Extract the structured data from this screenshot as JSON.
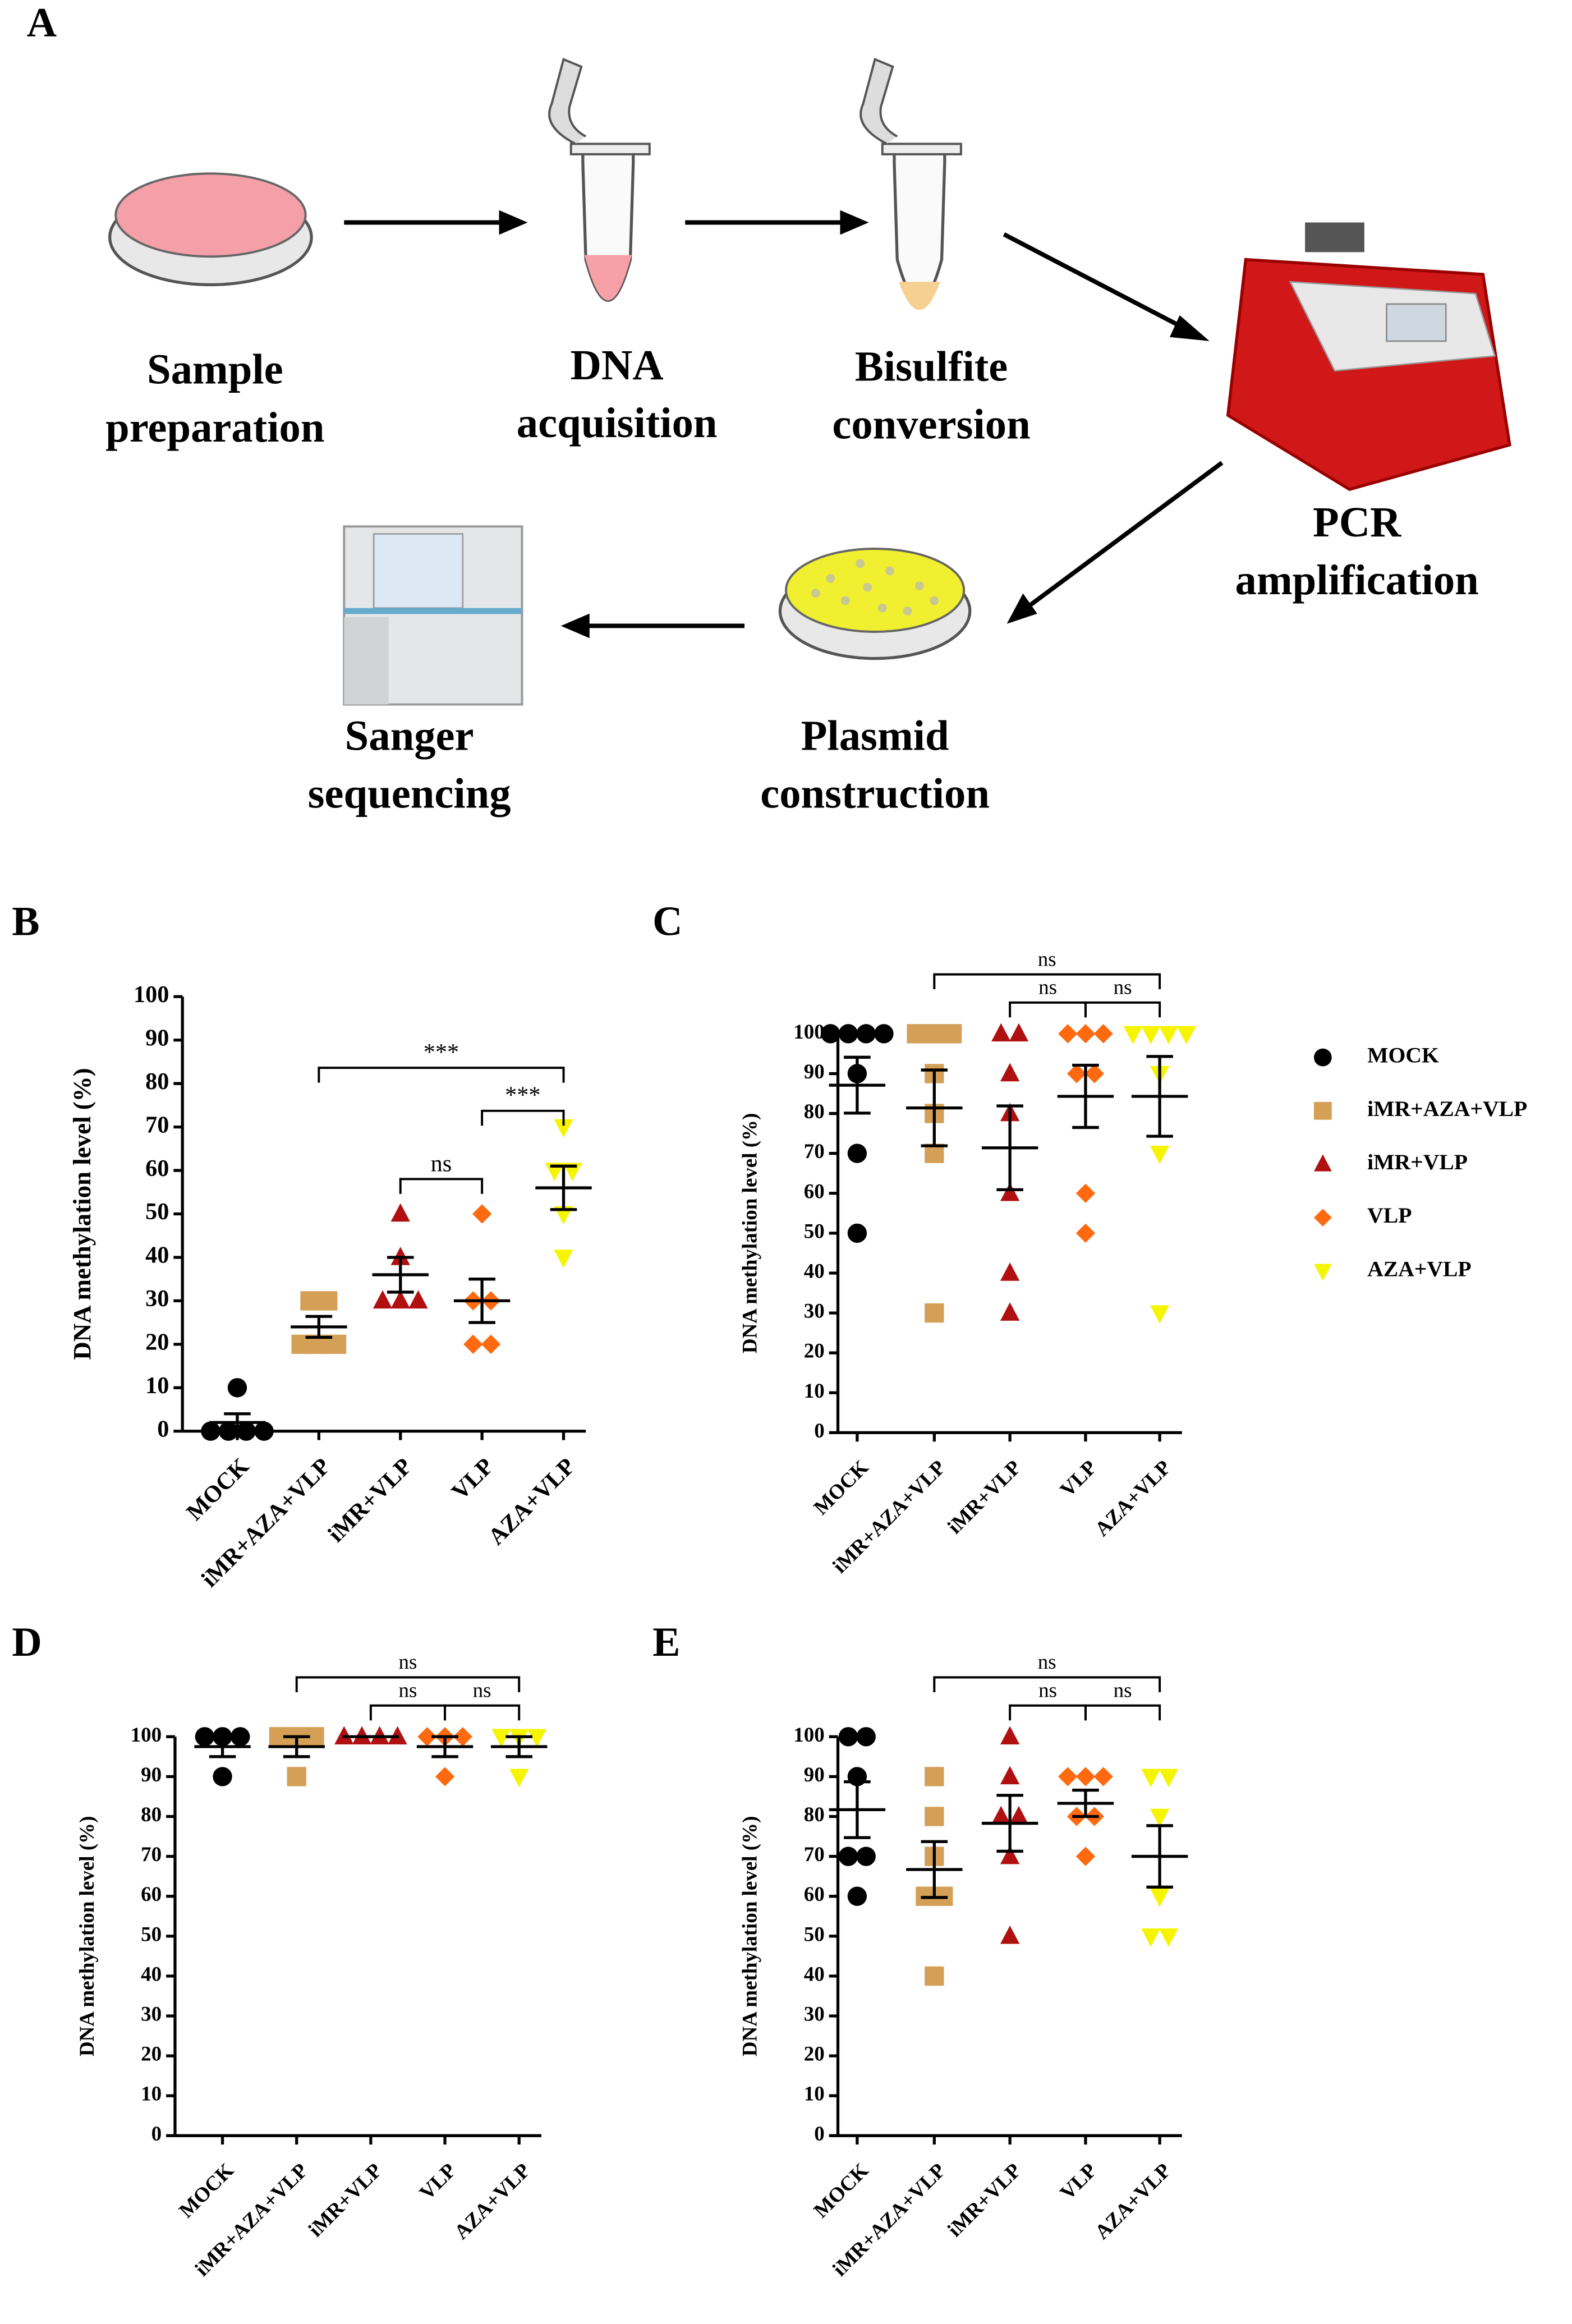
{
  "diagram": {
    "label": "A",
    "steps": [
      {
        "lines": [
          "Sample",
          "preparation"
        ]
      },
      {
        "lines": [
          "DNA",
          "acquisition"
        ]
      },
      {
        "lines": [
          "Bisulfite",
          "conversion"
        ]
      },
      {
        "lines": [
          "PCR",
          "amplification"
        ]
      },
      {
        "lines": [
          "Plasmid",
          "construction"
        ]
      },
      {
        "lines": [
          "Sanger",
          "sequencing"
        ]
      }
    ]
  },
  "chart_data": [
    {
      "type": "dot",
      "title": "B",
      "y_label": "DNA methylation level (%)",
      "categories": [
        "MOCK",
        "iMR+AZA+VLP",
        "iMR+VLP",
        "VLP",
        "AZA+VLP"
      ],
      "colors": [
        "#000000",
        "#d4a055",
        "#b01010",
        "#ff6a10",
        "#f5f500"
      ],
      "markers": [
        "circle",
        "square",
        "triangle",
        "diamond",
        "triangle-down"
      ],
      "values": [
        [
          0,
          0,
          0,
          0,
          10
        ],
        [
          30,
          30,
          20,
          20,
          20
        ],
        [
          50,
          40,
          30,
          30,
          30
        ],
        [
          50,
          30,
          30,
          20,
          20
        ],
        [
          70,
          60,
          60,
          50,
          40
        ]
      ],
      "mean": [
        2,
        24,
        36,
        30,
        56
      ],
      "sem": [
        2,
        2.4,
        4,
        5,
        5
      ],
      "brackets": [
        {
          "from": 1,
          "to": 4,
          "label": "***"
        },
        {
          "from": 3,
          "to": 4,
          "label": "***"
        },
        {
          "from": 2,
          "to": 3,
          "label": "ns"
        }
      ],
      "ylim": [
        0,
        100
      ],
      "yticks": [
        0,
        10,
        20,
        30,
        40,
        50,
        60,
        70,
        80,
        90,
        100
      ],
      "legend": false
    },
    {
      "type": "dot",
      "title": "C",
      "y_label": "DNA methylation level (%)",
      "categories": [
        "MOCK",
        "iMR+AZA+VLP",
        "iMR+VLP",
        "VLP",
        "AZA+VLP"
      ],
      "colors": [
        "#000000",
        "#d4a055",
        "#b01010",
        "#ff6a10",
        "#f5f500"
      ],
      "markers": [
        "circle",
        "square",
        "triangle",
        "diamond",
        "triangle-down"
      ],
      "values": [
        [
          100,
          100,
          100,
          100,
          90,
          70,
          50
        ],
        [
          100,
          100,
          100,
          90,
          80,
          70,
          30
        ],
        [
          100,
          100,
          90,
          80,
          60,
          40,
          30
        ],
        [
          100,
          100,
          100,
          90,
          90,
          60,
          50
        ],
        [
          100,
          100,
          100,
          100,
          90,
          70,
          30
        ]
      ],
      "mean": [
        87.1,
        81.4,
        71.4,
        84.3,
        84.3
      ],
      "sem": [
        7,
        9.5,
        10.5,
        7.8,
        10
      ],
      "brackets": [
        {
          "from": 1,
          "to": 4,
          "label": "ns"
        },
        {
          "from": 2,
          "to": 3,
          "label": "ns"
        },
        {
          "from": 3,
          "to": 4,
          "label": "ns"
        }
      ],
      "ylim": [
        0,
        100
      ],
      "yticks": [
        0,
        10,
        20,
        30,
        40,
        50,
        60,
        70,
        80,
        90,
        100
      ],
      "legend": true
    },
    {
      "type": "dot",
      "title": "D",
      "y_label": "DNA methylation level (%)",
      "categories": [
        "MOCK",
        "iMR+AZA+VLP",
        "iMR+VLP",
        "VLP",
        "AZA+VLP"
      ],
      "colors": [
        "#000000",
        "#d4a055",
        "#b01010",
        "#ff6a10",
        "#f5f500"
      ],
      "markers": [
        "circle",
        "square",
        "triangle",
        "diamond",
        "triangle-down"
      ],
      "values": [
        [
          100,
          100,
          100,
          90
        ],
        [
          100,
          100,
          100,
          90
        ],
        [
          100,
          100,
          100,
          100
        ],
        [
          100,
          100,
          100,
          90
        ],
        [
          100,
          100,
          100,
          90
        ]
      ],
      "mean": [
        97.5,
        97.5,
        100,
        97.5,
        97.5
      ],
      "sem": [
        2.5,
        2.5,
        0,
        2.5,
        2.5
      ],
      "brackets": [
        {
          "from": 1,
          "to": 4,
          "label": "ns"
        },
        {
          "from": 2,
          "to": 3,
          "label": "ns"
        },
        {
          "from": 3,
          "to": 4,
          "label": "ns"
        }
      ],
      "ylim": [
        0,
        100
      ],
      "yticks": [
        0,
        10,
        20,
        30,
        40,
        50,
        60,
        70,
        80,
        90,
        100
      ],
      "legend": false
    },
    {
      "type": "dot",
      "title": "E",
      "y_label": "DNA methylation level (%)",
      "categories": [
        "MOCK",
        "iMR+AZA+VLP",
        "iMR+VLP",
        "VLP",
        "AZA+VLP"
      ],
      "colors": [
        "#000000",
        "#d4a055",
        "#b01010",
        "#ff6a10",
        "#f5f500"
      ],
      "markers": [
        "circle",
        "square",
        "triangle",
        "diamond",
        "triangle-down"
      ],
      "values": [
        [
          100,
          100,
          90,
          70,
          70,
          60
        ],
        [
          90,
          80,
          70,
          60,
          60,
          40
        ],
        [
          100,
          90,
          80,
          80,
          70,
          50
        ],
        [
          90,
          90,
          90,
          80,
          80,
          70
        ],
        [
          90,
          90,
          80,
          60,
          50,
          50
        ]
      ],
      "mean": [
        81.7,
        66.7,
        78.3,
        83.3,
        70
      ],
      "sem": [
        7,
        7,
        7,
        3.3,
        7.7
      ],
      "brackets": [
        {
          "from": 1,
          "to": 4,
          "label": "ns"
        },
        {
          "from": 2,
          "to": 3,
          "label": "ns"
        },
        {
          "from": 3,
          "to": 4,
          "label": "ns"
        }
      ],
      "ylim": [
        0,
        100
      ],
      "yticks": [
        0,
        10,
        20,
        30,
        40,
        50,
        60,
        70,
        80,
        90,
        100
      ],
      "legend": false
    }
  ]
}
